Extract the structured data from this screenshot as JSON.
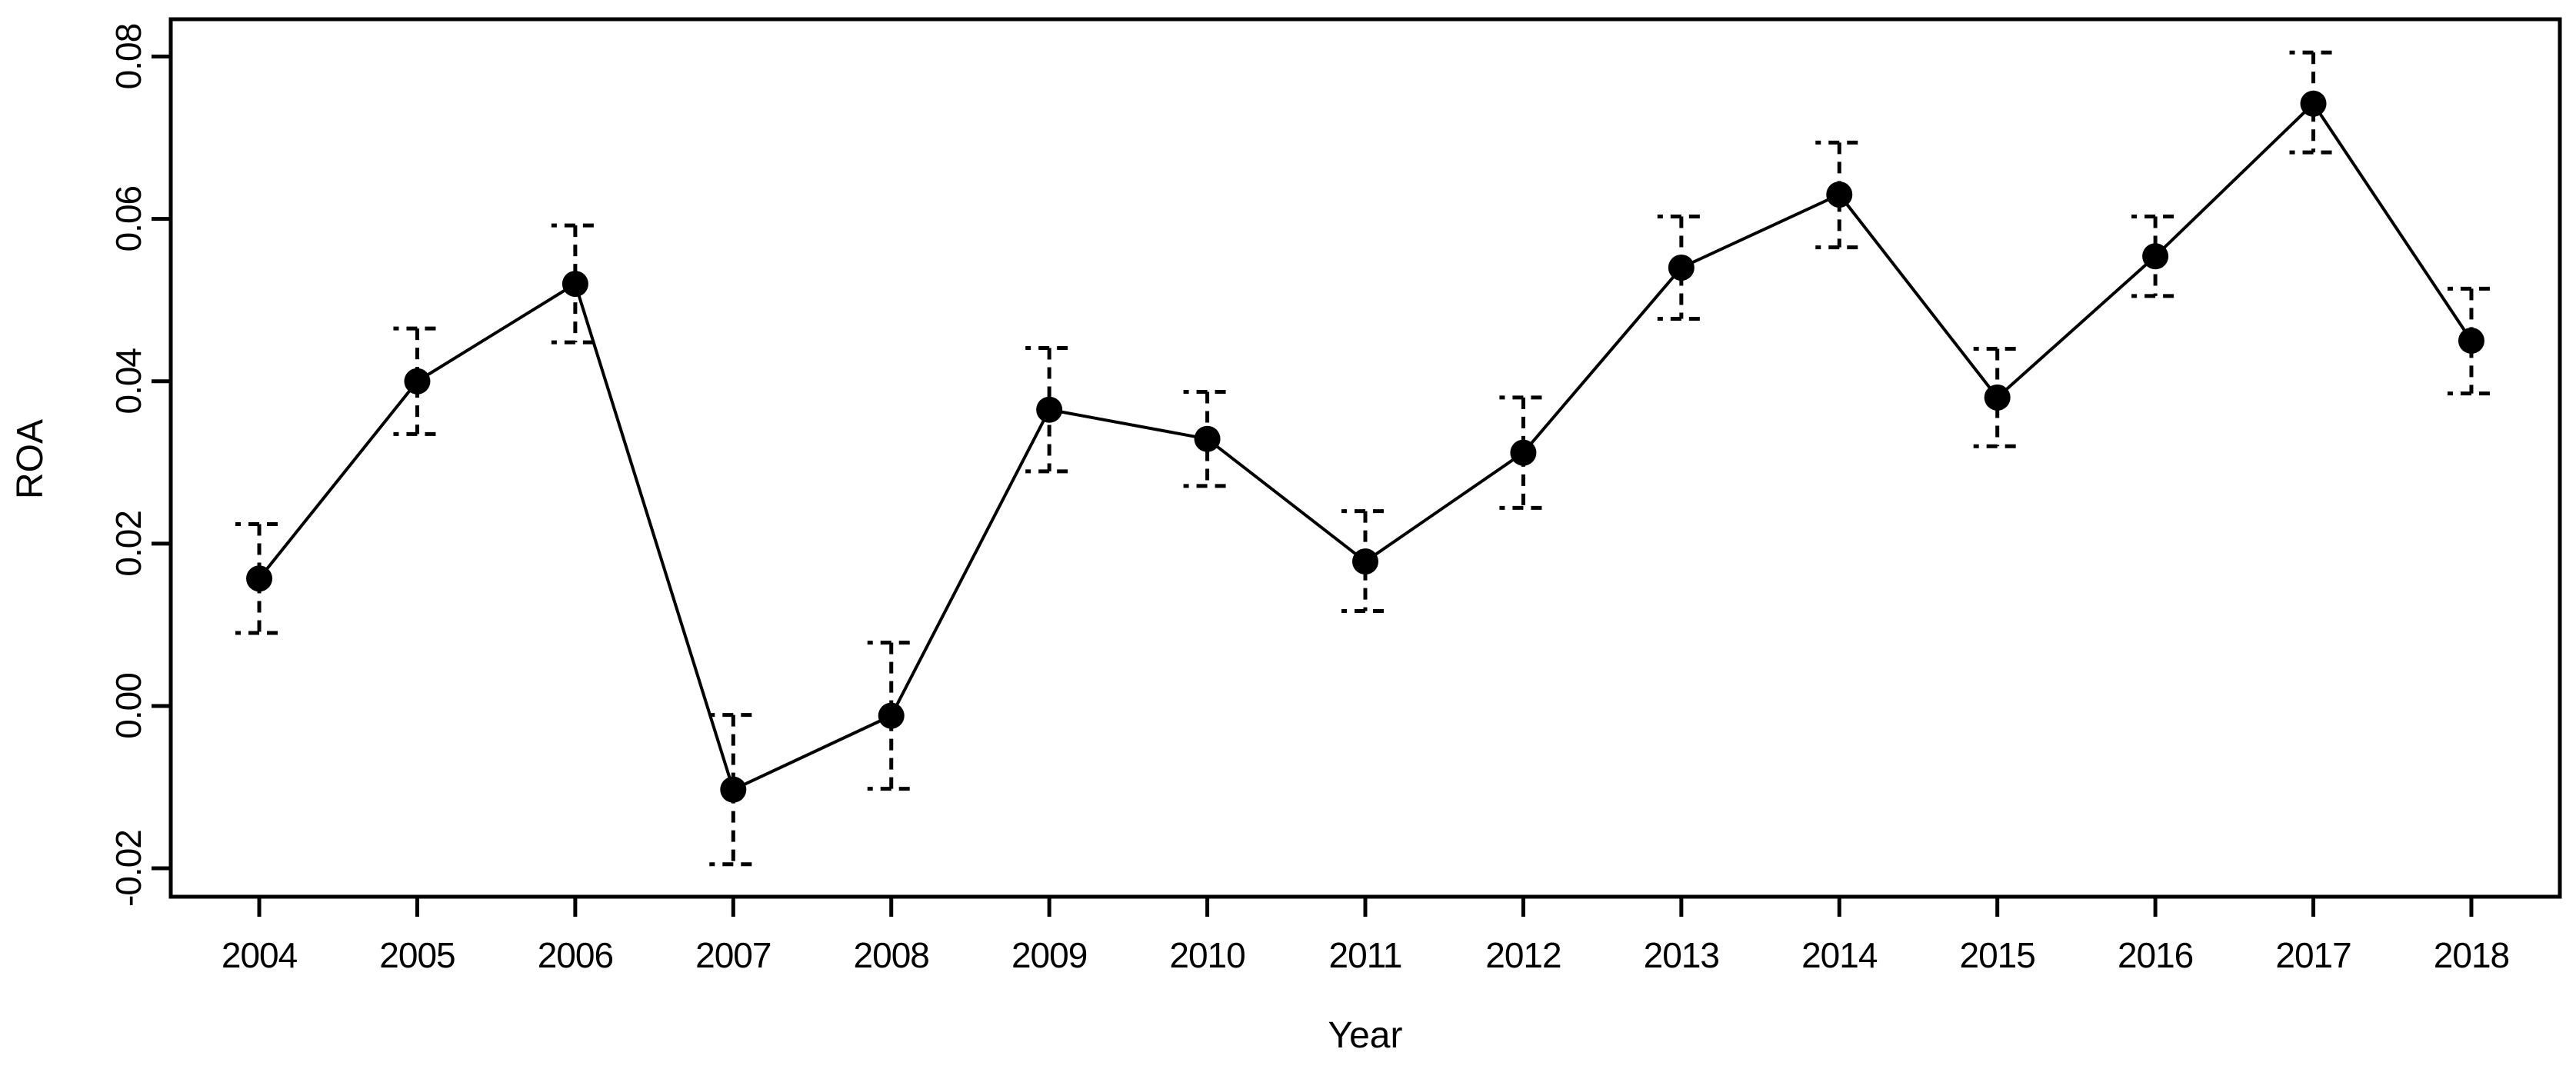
{
  "page": {
    "background_color": "#ffffff"
  },
  "chart_data": {
    "type": "line",
    "title": "",
    "xlabel": "Year",
    "ylabel": "ROA",
    "x": [
      2004,
      2005,
      2006,
      2007,
      2008,
      2009,
      2010,
      2011,
      2012,
      2013,
      2014,
      2015,
      2016,
      2017,
      2018
    ],
    "x_tick_labels": [
      "2004",
      "2005",
      "2006",
      "2007",
      "2008",
      "2009",
      "2010",
      "2011",
      "2012",
      "2013",
      "2014",
      "2015",
      "2016",
      "2017",
      "2018"
    ],
    "y_ticks": [
      -0.02,
      0.0,
      0.02,
      0.04,
      0.06,
      0.08
    ],
    "y_tick_labels": [
      "-0.02",
      "0.00",
      "0.02",
      "0.04",
      "0.06",
      "0.08"
    ],
    "series": [
      {
        "name": "ROA",
        "values": [
          0.0157,
          0.04,
          0.052,
          -0.0103,
          -0.0012,
          0.0365,
          0.0329,
          0.0178,
          0.0312,
          0.054,
          0.063,
          0.038,
          0.0554,
          0.0742,
          0.045
        ],
        "error_lower": [
          0.009,
          0.0335,
          0.0448,
          -0.0195,
          -0.0102,
          0.0289,
          0.0271,
          0.0117,
          0.0244,
          0.0477,
          0.0565,
          0.032,
          0.0505,
          0.0682,
          0.0385
        ],
        "error_upper": [
          0.0224,
          0.0465,
          0.0592,
          -0.0011,
          0.0078,
          0.0441,
          0.0387,
          0.024,
          0.038,
          0.0603,
          0.0694,
          0.044,
          0.0603,
          0.0805,
          0.0514
        ]
      }
    ],
    "xlim": [
      2003.44,
      2018.56
    ],
    "ylim": [
      -0.0235,
      0.0846
    ],
    "grid": false,
    "legend": false,
    "marker": "filled-circle",
    "error_bar_style": "dashed",
    "colors": {
      "line": "#000000",
      "marker": "#000000",
      "error_bar": "#000000",
      "axis": "#000000",
      "text": "#000000",
      "background": "#ffffff"
    }
  }
}
